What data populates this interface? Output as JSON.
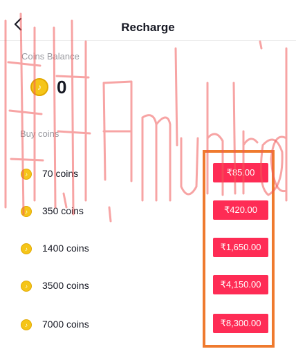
{
  "header": {
    "title": "Recharge",
    "back_icon": "back-chevron-icon"
  },
  "balance": {
    "label": "Coins Balance",
    "value": "0",
    "icon": "tiktok-coin-icon"
  },
  "buy": {
    "label": "Buy coins",
    "packages": [
      {
        "coins": "70 coins",
        "price": "₹85.00"
      },
      {
        "coins": "350 coins",
        "price": "₹420.00"
      },
      {
        "coins": "1400 coins",
        "price": "₹1,650.00"
      },
      {
        "coins": "3500 coins",
        "price": "₹4,150.00"
      },
      {
        "coins": "7000 coins",
        "price": "₹8,300.00"
      }
    ]
  },
  "colors": {
    "price_button": "#fe2c55",
    "highlight_box": "#ef7a2e",
    "coin": "#f5c518",
    "watermark": "#f05a5a"
  }
}
